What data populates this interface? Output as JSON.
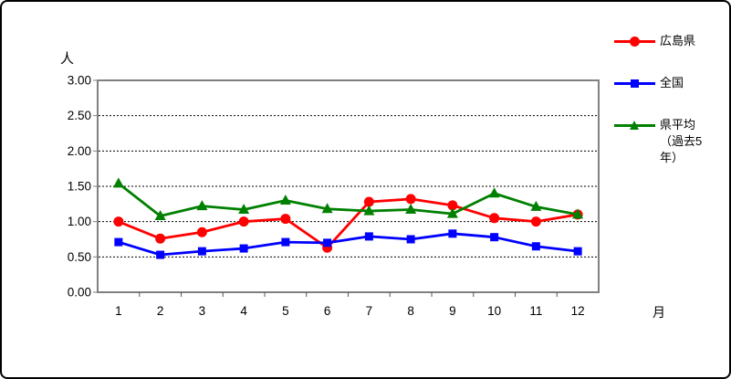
{
  "frame": {
    "background": "#FFFFFF",
    "border_color": "#000000",
    "plot_border_color": "#808080"
  },
  "axes": {
    "y_unit": "人",
    "x_unit": "月",
    "y_ticks": [
      "3.00",
      "2.50",
      "2.00",
      "1.50",
      "1.00",
      "0.50",
      "0.00"
    ],
    "x_ticks": [
      "1",
      "2",
      "3",
      "4",
      "5",
      "6",
      "7",
      "8",
      "9",
      "10",
      "11",
      "12"
    ]
  },
  "legend": {
    "entries": [
      {
        "label": "広島県",
        "display": "広島県",
        "color": "#FF0000",
        "marker": "circle"
      },
      {
        "label": "全国",
        "display": "全国",
        "color": "#0000FF",
        "marker": "square"
      },
      {
        "label": "県平均（過去5年）",
        "display": "県平均\n（過去5\n年）",
        "color": "#008000",
        "marker": "triangle"
      }
    ]
  },
  "chart_data": {
    "type": "line",
    "title": "",
    "xlabel": "月",
    "ylabel": "人",
    "ylim": [
      0,
      3.0
    ],
    "ytick_step": 0.5,
    "grid": "horizontal-dashed",
    "legend_position": "right",
    "categories": [
      "1",
      "2",
      "3",
      "4",
      "5",
      "6",
      "7",
      "8",
      "9",
      "10",
      "11",
      "12"
    ],
    "series": [
      {
        "id": "hiroshima",
        "name": "広島県",
        "color": "#FF0000",
        "marker": "circle",
        "values": [
          1.0,
          0.76,
          0.85,
          1.0,
          1.04,
          0.63,
          1.28,
          1.32,
          1.23,
          1.05,
          1.0,
          1.1
        ]
      },
      {
        "id": "national",
        "name": "全国",
        "color": "#0000FF",
        "marker": "square",
        "values": [
          0.71,
          0.53,
          0.58,
          0.62,
          0.71,
          0.7,
          0.79,
          0.75,
          0.83,
          0.78,
          0.65,
          0.58
        ]
      },
      {
        "id": "pref-average-5yr",
        "name": "県平均（過去5年）",
        "color": "#008000",
        "marker": "triangle",
        "values": [
          1.54,
          1.08,
          1.22,
          1.17,
          1.3,
          1.18,
          1.15,
          1.17,
          1.11,
          1.4,
          1.21,
          1.1
        ]
      }
    ]
  }
}
